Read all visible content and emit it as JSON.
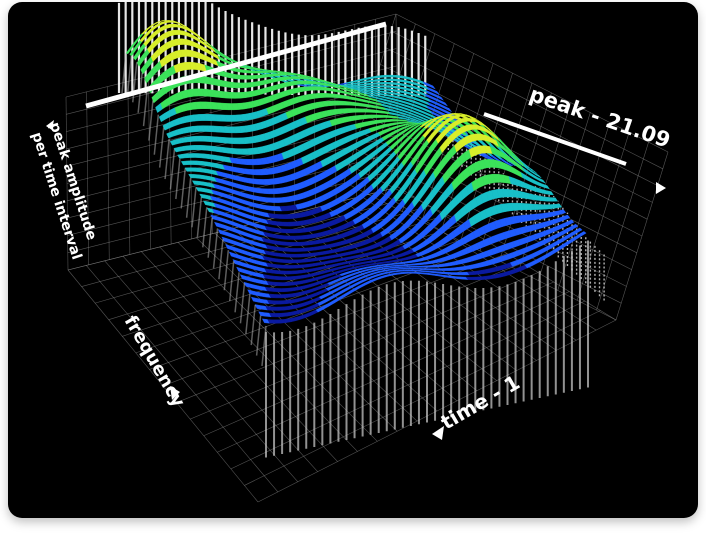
{
  "chart_data": {
    "type": "surface",
    "peak_label": "peak - 21.09",
    "axes": {
      "z_label_line1": "peak amplitude",
      "z_label_line2": "per time interval",
      "y_label": "frequency",
      "x_label": "time - 1"
    },
    "colormap": [
      "#0a1aa0",
      "#1f5cff",
      "#18c0c8",
      "#3be35a",
      "#d8ee2a",
      "#ffb21e",
      "#ff3a1a"
    ]
  }
}
